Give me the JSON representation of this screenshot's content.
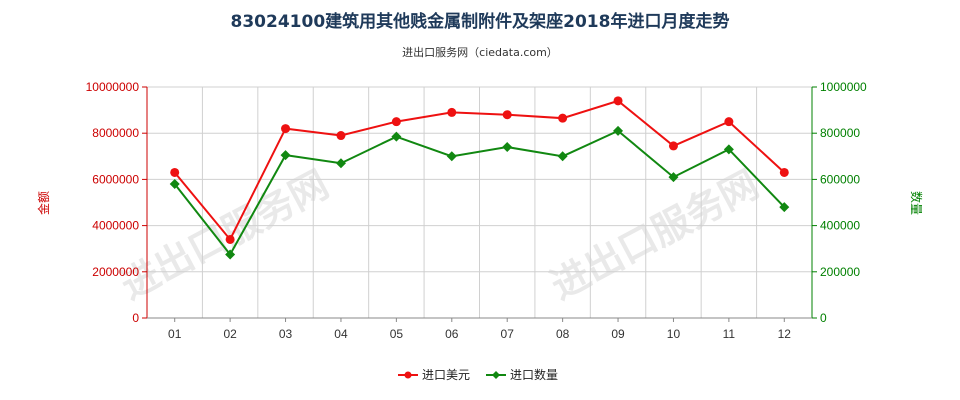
{
  "chart_data": {
    "type": "line",
    "title": "83024100建筑用其他贱金属制附件及架座2018年进口月度走势",
    "subtitle": "进出口服务网（ciedata.com）",
    "categories": [
      "01",
      "02",
      "03",
      "04",
      "05",
      "06",
      "07",
      "08",
      "09",
      "10",
      "11",
      "12"
    ],
    "ylabel_left": "金额",
    "ylabel_right": "数量",
    "ylim_left": [
      0,
      10000000
    ],
    "ylim_right": [
      0,
      1000000
    ],
    "yticks_left": [
      "0",
      "2000000",
      "4000000",
      "6000000",
      "8000000",
      "10000000"
    ],
    "yticks_right": [
      "0",
      "200000",
      "400000",
      "600000",
      "800000",
      "1000000"
    ],
    "grid": "horizontal",
    "legend_position": "bottom-center",
    "watermark": "进出口服务网",
    "series": [
      {
        "name": "进口美元",
        "axis": "left",
        "color": "#ee1111",
        "marker": "circle",
        "values": [
          6300000,
          3400000,
          8200000,
          7900000,
          8500000,
          8900000,
          8800000,
          8650000,
          9400000,
          7450000,
          8500000,
          6300000
        ]
      },
      {
        "name": "进口数量",
        "axis": "right",
        "color": "#118811",
        "marker": "diamond",
        "values": [
          580000,
          275000,
          705000,
          670000,
          785000,
          700000,
          740000,
          700000,
          810000,
          610000,
          730000,
          480000
        ]
      }
    ]
  }
}
